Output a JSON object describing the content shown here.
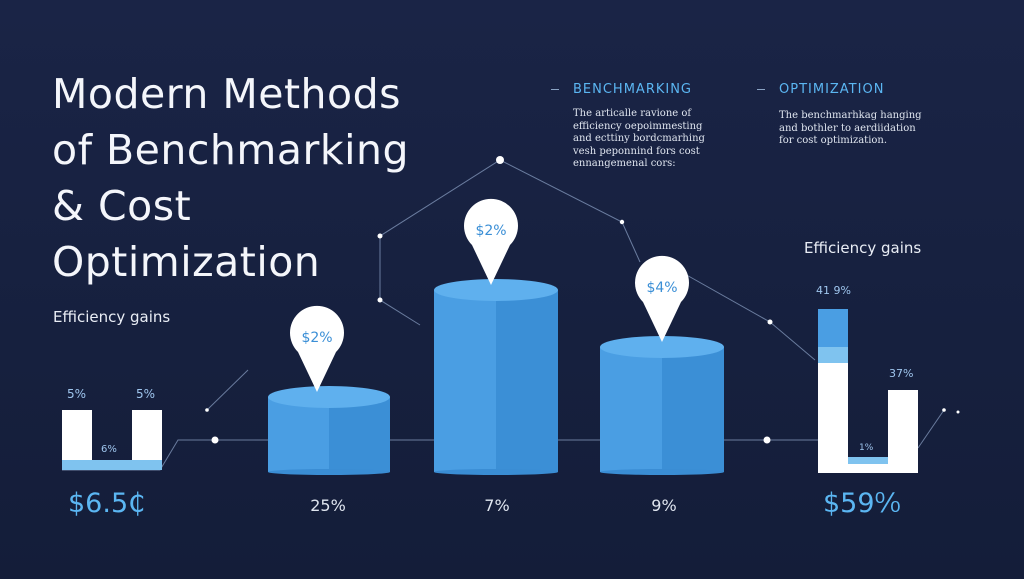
{
  "title_lines": [
    "Modern Methods",
    "of Benchmarking",
    "& Cost",
    "Optimization"
  ],
  "left_label": "Efficiency gains",
  "right_label": "Efficiency gains",
  "sections": [
    {
      "heading": "BENCHMARKING",
      "body": [
        "The articalle ravione of",
        "efficiency oepoimmesting",
        "and ecttiny bordcmarhing",
        "vesh peponnind fors cost",
        "ennangemenal cors:"
      ]
    },
    {
      "heading": "OPTIMIZATION",
      "body": [
        "The benchmarhkag hanging",
        "and bothler to aerdiidation",
        "for cost optimization."
      ]
    }
  ],
  "colors": {
    "background": "#16213f",
    "bar_blue": "#3f97dc",
    "bar_blue_light": "#54aaea",
    "bar_white": "#ffffff",
    "accent_text": "#5bb6f2"
  },
  "chart_data": [
    {
      "type": "bar",
      "name": "left-bars",
      "values_labels": [
        "5%",
        "6%",
        "5%"
      ],
      "total_label": "$6.5₵"
    },
    {
      "type": "bar",
      "name": "cylinders",
      "categories": [
        "25%",
        "7%",
        "9%"
      ],
      "pin_labels": [
        "$2%",
        "$2%",
        "$4%"
      ],
      "relative_heights": [
        0.46,
        1.0,
        0.71
      ]
    },
    {
      "type": "bar",
      "name": "right-bars",
      "value_labels": [
        "41 9%",
        "1%",
        "37%"
      ],
      "total_label": "$59⁰⁄₀"
    }
  ]
}
